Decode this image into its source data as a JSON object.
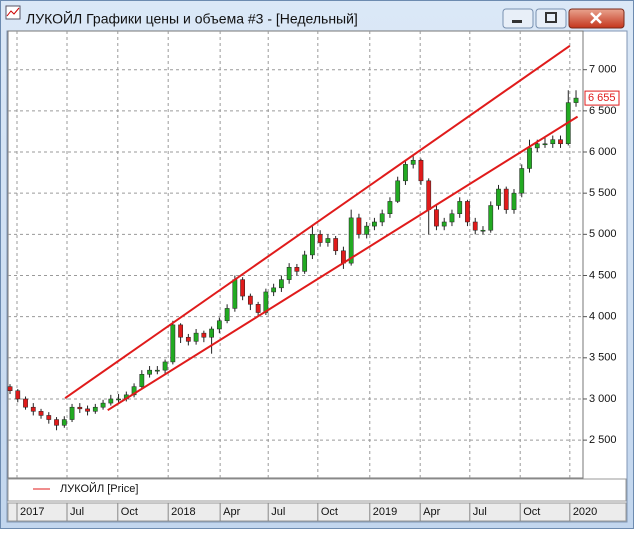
{
  "window": {
    "title": "ЛУКОЙЛ Графики цены и объема #3 - [Недельный]"
  },
  "chart_data": {
    "type": "candlestick",
    "legend": "ЛУКОЙЛ [Price]",
    "up_color": "#22aa22",
    "down_color": "#e01b1b",
    "line_color": "#e01b1b",
    "open": [
      3150,
      3100,
      3000,
      2900,
      2850,
      2800,
      2750,
      2680,
      2750,
      2900,
      2880,
      2850,
      2900,
      2950,
      3000,
      3000,
      3050,
      3150,
      3300,
      3350,
      3350,
      3450,
      3900,
      3750,
      3700,
      3800,
      3750,
      3850,
      3950,
      4100,
      4450,
      4250,
      4150,
      4050,
      4300,
      4350,
      4450,
      4600,
      4550,
      4750,
      5000,
      4900,
      4950,
      4800,
      4650,
      5200,
      5000,
      5100,
      5150,
      5250,
      5400,
      5650,
      5850,
      5900,
      5650,
      5300,
      5100,
      5150,
      5250,
      5400,
      5150,
      5050,
      5050,
      5350,
      5550,
      5300,
      5500,
      5800,
      6050,
      6100,
      6100,
      6150,
      6100,
      6600
    ],
    "high": [
      3180,
      3120,
      3030,
      2950,
      2880,
      2840,
      2780,
      2790,
      2940,
      2950,
      2920,
      2940,
      2990,
      3050,
      3060,
      3090,
      3190,
      3350,
      3400,
      3400,
      3480,
      3950,
      3920,
      3790,
      3850,
      3830,
      3880,
      3990,
      4150,
      4500,
      4480,
      4280,
      4180,
      4340,
      4400,
      4500,
      4650,
      4640,
      4800,
      5100,
      5050,
      5000,
      4980,
      4850,
      5300,
      5250,
      5150,
      5200,
      5300,
      5450,
      5700,
      5900,
      5950,
      5920,
      5680,
      5350,
      5200,
      5300,
      5450,
      5420,
      5200,
      5100,
      5400,
      5600,
      5580,
      5550,
      5850,
      6150,
      6150,
      6180,
      6200,
      6200,
      6750,
      6750
    ],
    "low": [
      3060,
      2960,
      2870,
      2800,
      2760,
      2700,
      2620,
      2650,
      2720,
      2830,
      2800,
      2820,
      2870,
      2920,
      2950,
      2970,
      3020,
      3120,
      3260,
      3300,
      3300,
      3420,
      3680,
      3650,
      3660,
      3690,
      3550,
      3800,
      3920,
      4060,
      4200,
      4080,
      4000,
      4020,
      4250,
      4300,
      4400,
      4500,
      4520,
      4700,
      4850,
      4850,
      4750,
      4580,
      4620,
      4950,
      4950,
      5050,
      5100,
      5200,
      5380,
      5600,
      5800,
      5600,
      5000,
      5050,
      5050,
      5100,
      5200,
      5100,
      5000,
      5000,
      5020,
      5300,
      5250,
      5250,
      5450,
      5750,
      6000,
      6050,
      6050,
      6050,
      6080,
      6550
    ],
    "close": [
      3100,
      3000,
      2900,
      2850,
      2800,
      2750,
      2680,
      2750,
      2900,
      2880,
      2850,
      2900,
      2950,
      3000,
      3000,
      3050,
      3150,
      3300,
      3350,
      3350,
      3450,
      3900,
      3750,
      3700,
      3800,
      3750,
      3850,
      3950,
      4100,
      4450,
      4250,
      4150,
      4050,
      4300,
      4350,
      4450,
      4600,
      4550,
      4750,
      5000,
      4900,
      4950,
      4800,
      4650,
      5200,
      5000,
      5100,
      5150,
      5250,
      5400,
      5650,
      5850,
      5900,
      5650,
      5300,
      5100,
      5150,
      5250,
      5400,
      5150,
      5050,
      5050,
      5350,
      5550,
      5300,
      5500,
      5800,
      6050,
      6100,
      6100,
      6150,
      6100,
      6600,
      6655
    ],
    "trendlines": [
      {
        "x": [
          7.1,
          72.2
        ],
        "y": [
          3010,
          7290
        ]
      },
      {
        "x": [
          12.6,
          73.2
        ],
        "y": [
          2864,
          6430
        ]
      }
    ],
    "last_price": {
      "value": 6655,
      "label": "6 655"
    },
    "xlim": [
      -0.26,
      73.9
    ],
    "ylim": [
      2040,
      7470
    ],
    "xticks": [
      {
        "value": 0.9,
        "label": "2017"
      },
      {
        "value": 7.35,
        "label": "Jul"
      },
      {
        "value": 13.9,
        "label": "Oct"
      },
      {
        "value": 20.4,
        "label": "2018"
      },
      {
        "value": 27.1,
        "label": "Apr"
      },
      {
        "value": 33.3,
        "label": "Jul"
      },
      {
        "value": 39.7,
        "label": "Oct"
      },
      {
        "value": 46.4,
        "label": "2019"
      },
      {
        "value": 52.9,
        "label": "Apr"
      },
      {
        "value": 59.3,
        "label": "Jul"
      },
      {
        "value": 65.8,
        "label": "Oct"
      },
      {
        "value": 72.2,
        "label": "2020"
      }
    ],
    "yticks": [
      {
        "value": 2500,
        "label": "2 500"
      },
      {
        "value": 3000,
        "label": "3 000"
      },
      {
        "value": 3500,
        "label": "3 500"
      },
      {
        "value": 4000,
        "label": "4 000"
      },
      {
        "value": 4500,
        "label": "4 500"
      },
      {
        "value": 5000,
        "label": "5 000"
      },
      {
        "value": 5500,
        "label": "5 500"
      },
      {
        "value": 6000,
        "label": "6 000"
      },
      {
        "value": 6500,
        "label": "6 500"
      },
      {
        "value": 7000,
        "label": "7 000"
      }
    ],
    "grid": true
  }
}
